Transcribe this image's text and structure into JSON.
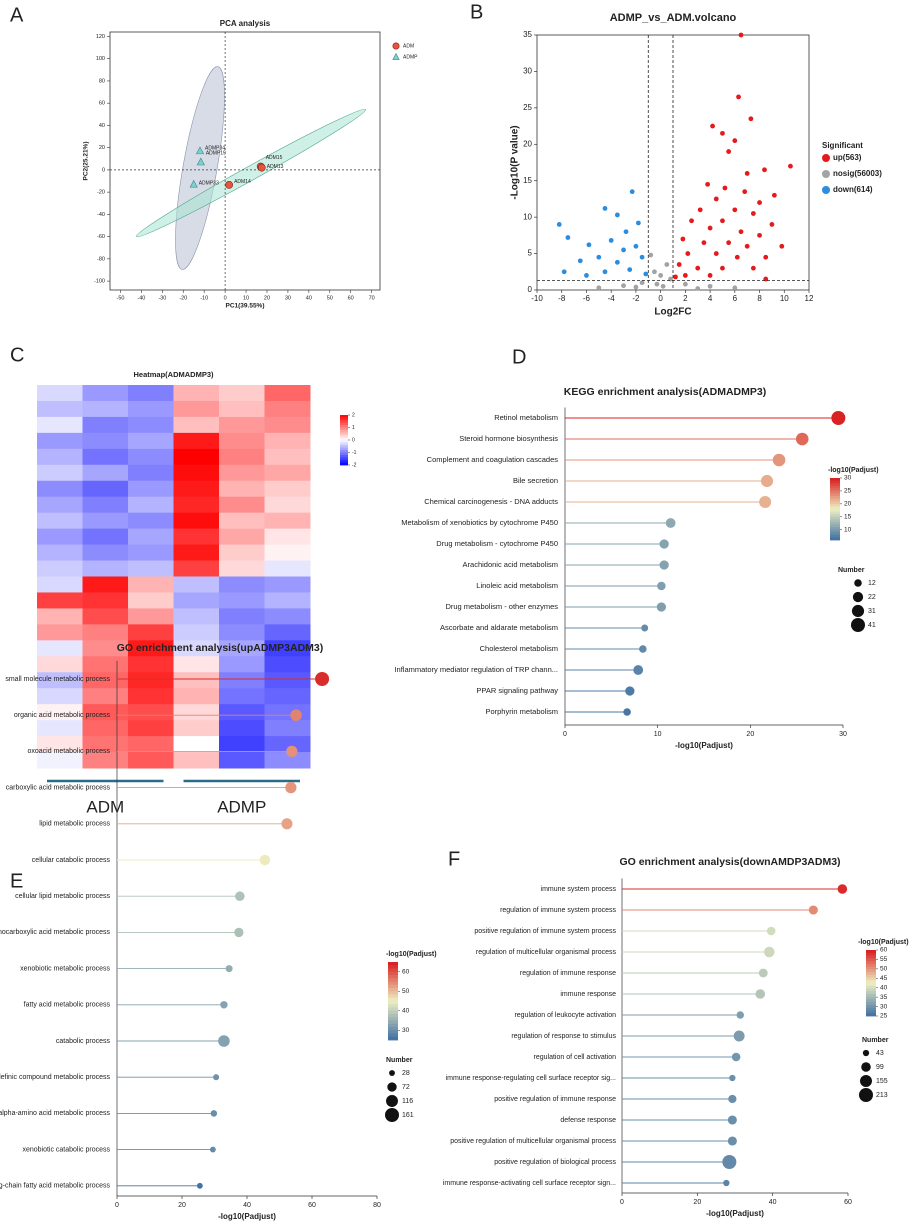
{
  "chart_data": [
    {
      "panel": "A",
      "type": "scatter",
      "title": "PCA analysis",
      "xlabel": "PC1(39.55%)",
      "ylabel": "PC2(25.21%)",
      "xlim": [
        -55,
        74
      ],
      "ylim": [
        -108,
        124
      ],
      "xticks": [
        -50,
        -40,
        -30,
        -20,
        -10,
        0,
        10,
        20,
        30,
        40,
        50,
        60,
        70
      ],
      "yticks": [
        -100,
        -80,
        -60,
        -40,
        -20,
        0,
        20,
        40,
        60,
        80,
        100,
        120
      ],
      "series": [
        {
          "name": "ADM",
          "color": "#e8533f",
          "marker": "circle",
          "x": [
            1.9,
            17,
            17.5
          ],
          "values": [
            -13.5,
            3,
            2
          ],
          "labels": [
            "ADM14",
            "ADM15",
            "ADM13"
          ]
        },
        {
          "name": "ADMP",
          "color": "#7fcfcf",
          "marker": "triangle",
          "x": [
            -12,
            -11.6,
            -15
          ],
          "values": [
            17,
            7,
            -13
          ],
          "labels": [
            "ADMP34",
            "ADMP19",
            "ADMP33"
          ]
        }
      ]
    },
    {
      "panel": "B",
      "type": "volcano",
      "title": "ADMP_vs_ADM.volcano",
      "xlabel": "Log2FC",
      "ylabel": "-Log10(P value)",
      "legend_title": "Significant",
      "xlim": [
        -10,
        12
      ],
      "ylim": [
        0,
        35
      ],
      "xticks": [
        -10,
        -8,
        -6,
        -4,
        -2,
        0,
        2,
        4,
        6,
        8,
        10,
        12
      ],
      "yticks": [
        0,
        5,
        10,
        15,
        20,
        25,
        30,
        35
      ],
      "thresholds": {
        "x": [
          -1,
          1
        ],
        "y": 1.3
      },
      "series": [
        {
          "name": "up(563)",
          "color": "#e41a1c",
          "x": [
            6.5,
            6.3,
            7.3,
            4.2,
            5,
            6,
            5.5,
            10.5,
            8.4,
            7,
            3.8,
            5.2,
            6.8,
            9.2,
            4.5,
            8,
            3.2,
            6,
            7.5,
            2.5,
            5,
            9,
            4,
            6.5,
            8,
            1.8,
            3.5,
            5.5,
            7,
            9.8,
            2.2,
            4.5,
            6.2,
            8.5,
            1.5,
            3,
            5,
            7.5,
            2,
            4,
            1.2,
            8.5
          ],
          "values": [
            35,
            26.5,
            23.5,
            22.5,
            21.5,
            20.5,
            19,
            17,
            16.5,
            16,
            14.5,
            14,
            13.5,
            13,
            12.5,
            12,
            11,
            11,
            10.5,
            9.5,
            9.5,
            9,
            8.5,
            8,
            7.5,
            7,
            6.5,
            6.5,
            6,
            6,
            5,
            5,
            4.5,
            4.5,
            3.5,
            3,
            3,
            3,
            2,
            2,
            1.8,
            1.5
          ]
        },
        {
          "name": "nosig(56003)",
          "color": "#a3a3a3",
          "x": [
            -0.8,
            0.5,
            -0.5,
            0,
            0.8,
            -1.5,
            -3,
            -5,
            2,
            4,
            6,
            0.2,
            -0.3,
            3,
            -2
          ],
          "values": [
            4.8,
            3.5,
            2.5,
            2,
            1.5,
            1,
            0.6,
            0.3,
            0.8,
            0.5,
            0.3,
            0.5,
            0.8,
            0.2,
            0.4
          ]
        },
        {
          "name": "down(614)",
          "color": "#2b8ce0",
          "x": [
            -2.3,
            -4.5,
            -8.2,
            -3.5,
            -7.5,
            -2.8,
            -1.8,
            -5.8,
            -4,
            -3,
            -2,
            -6.5,
            -5,
            -3.5,
            -1.5,
            -7.8,
            -4.5,
            -2.5,
            -1.2,
            -6
          ],
          "values": [
            13.5,
            11.2,
            9,
            10.3,
            7.2,
            8,
            9.2,
            6.2,
            6.8,
            5.5,
            6,
            4,
            4.5,
            3.8,
            4.5,
            2.5,
            2.5,
            2.8,
            2.2,
            2
          ]
        }
      ]
    },
    {
      "panel": "C",
      "type": "heatmap",
      "title": "Heatmap(ADMADMP3)",
      "groups": [
        "ADM",
        "ADMP"
      ],
      "colorlim": [
        -2,
        2
      ],
      "color_ticks": [
        2,
        1,
        0,
        -1,
        -2
      ],
      "rows": [
        [
          -0.3,
          -0.8,
          -1.0,
          0.6,
          0.4,
          1.2
        ],
        [
          -0.5,
          -0.6,
          -0.8,
          0.8,
          0.5,
          1.0
        ],
        [
          -0.2,
          -1.0,
          -0.9,
          0.5,
          0.8,
          0.9
        ],
        [
          -0.8,
          -0.9,
          -0.7,
          1.8,
          0.9,
          0.6
        ],
        [
          -0.6,
          -1.1,
          -0.9,
          2.0,
          1.0,
          0.5
        ],
        [
          -0.4,
          -0.7,
          -1.0,
          1.9,
          0.8,
          0.7
        ],
        [
          -0.9,
          -1.2,
          -0.8,
          1.8,
          0.6,
          0.4
        ],
        [
          -0.7,
          -1.0,
          -0.6,
          1.7,
          0.9,
          0.3
        ],
        [
          -0.5,
          -0.8,
          -0.9,
          1.9,
          0.5,
          0.6
        ],
        [
          -0.8,
          -1.1,
          -0.7,
          1.6,
          0.7,
          0.2
        ],
        [
          -0.6,
          -0.9,
          -0.8,
          1.8,
          0.4,
          0.1
        ],
        [
          -0.4,
          -0.6,
          -0.5,
          1.5,
          0.3,
          -0.2
        ],
        [
          -0.3,
          1.8,
          0.6,
          -0.5,
          -0.9,
          -0.8
        ],
        [
          1.5,
          1.6,
          0.4,
          -0.7,
          -0.8,
          -0.6
        ],
        [
          0.6,
          1.4,
          0.8,
          -0.5,
          -1.0,
          -0.9
        ],
        [
          0.8,
          1.0,
          1.5,
          -0.4,
          -0.9,
          -1.2
        ],
        [
          -0.2,
          0.9,
          1.8,
          -0.3,
          -0.7,
          -1.5
        ],
        [
          0.3,
          1.1,
          1.6,
          0.2,
          -0.8,
          -1.4
        ],
        [
          -0.5,
          1.2,
          1.7,
          0.5,
          -1.0,
          -1.3
        ],
        [
          -0.3,
          1.0,
          1.6,
          0.6,
          -1.1,
          -1.2
        ],
        [
          0.1,
          1.3,
          1.4,
          0.3,
          -1.3,
          -1.1
        ],
        [
          -0.2,
          1.2,
          1.5,
          0.4,
          -1.4,
          -1.0
        ],
        [
          0.2,
          1.1,
          1.2,
          0.0,
          -1.5,
          -1.2
        ],
        [
          -0.1,
          1.0,
          1.3,
          0.5,
          -1.3,
          -0.9
        ]
      ]
    },
    {
      "panel": "D",
      "type": "lollipop",
      "title": "KEGG enrichment analysis(ADMADMP3)",
      "xlabel": "-log10(Padjust)",
      "color_label": "-log10(Padjust)",
      "size_label": "Number",
      "xlim": [
        0,
        30
      ],
      "xticks": [
        0,
        10,
        20,
        30
      ],
      "colorlim": [
        6,
        30
      ],
      "color_ticks": [
        10,
        15,
        20,
        25,
        30
      ],
      "size_ticks": [
        12,
        22,
        31,
        41
      ],
      "categories": [
        "Retinol metabolism",
        "Steroid hormone biosynthesis",
        "Complement and coagulation cascades",
        "Bile secretion",
        "Chemical carcinogenesis - DNA adducts",
        "Metabolism of xenobiotics by cytochrome P450",
        "Drug metabolism - cytochrome P450",
        "Arachidonic acid metabolism",
        "Linoleic acid metabolism",
        "Drug metabolism - other enzymes",
        "Ascorbate and aldarate metabolism",
        "Cholesterol metabolism",
        "Inflammatory mediator regulation of TRP chann...",
        "PPAR signaling pathway",
        "Porphyrin metabolism"
      ],
      "values": [
        29.5,
        25.6,
        23.1,
        21.8,
        21.6,
        11.4,
        10.7,
        10.7,
        10.4,
        10.4,
        8.6,
        8.4,
        7.9,
        7.0,
        6.7
      ],
      "sizes": [
        41,
        33,
        33,
        31,
        30,
        20,
        18,
        18,
        15,
        18,
        10,
        12,
        20,
        18,
        12
      ]
    },
    {
      "panel": "E",
      "type": "lollipop",
      "title": "GO enrichment analysis(upADMP3ADM3)",
      "xlabel": "-log10(Padjust)",
      "color_label": "-log10(Padjust)",
      "size_label": "Number",
      "xlim": [
        0,
        80
      ],
      "xticks": [
        0,
        20,
        40,
        60,
        80
      ],
      "colorlim": [
        25,
        65
      ],
      "color_ticks": [
        30,
        40,
        50,
        60
      ],
      "size_ticks": [
        28,
        72,
        116,
        161
      ],
      "categories": [
        "small molecule metabolic process",
        "organic acid metabolic process",
        "oxoacid metabolic process",
        "carboxylic acid metabolic process",
        "lipid metabolic process",
        "cellular catabolic process",
        "cellular lipid metabolic process",
        "monocarboxylic acid metabolic process",
        "xenobiotic metabolic process",
        "fatty acid metabolic process",
        "catabolic process",
        "olefinic compound metabolic process",
        "alpha-amino acid metabolic process",
        "xenobiotic catabolic process",
        "long-chain fatty acid metabolic process"
      ],
      "values": [
        63.1,
        55.1,
        53.8,
        53.5,
        52.3,
        45.5,
        37.8,
        37.5,
        34.5,
        32.9,
        32.9,
        30.5,
        29.8,
        29.5,
        25.5
      ],
      "sizes": [
        161,
        110,
        105,
        104,
        100,
        90,
        75,
        72,
        40,
        45,
        110,
        30,
        35,
        28,
        28
      ]
    },
    {
      "panel": "F",
      "type": "lollipop",
      "title": "GO enrichment analysis(downAMDP3ADM3)",
      "xlabel": "-log10(Padjust)",
      "color_label": "-log10(Padjust)",
      "size_label": "Number",
      "xlim": [
        0,
        60
      ],
      "xticks": [
        0,
        20,
        40,
        60
      ],
      "colorlim": [
        25,
        60
      ],
      "color_ticks": [
        25,
        30,
        35,
        40,
        45,
        50,
        55,
        60
      ],
      "size_ticks": [
        43,
        99,
        155,
        213
      ],
      "categories": [
        "immune system process",
        "regulation of immune system process",
        "positive regulation of immune system process",
        "regulation of multicellular organismal process",
        "regulation of immune response",
        "immune response",
        "regulation of leukocyte activation",
        "regulation of response to stimulus",
        "regulation of cell activation",
        "immune response-regulating cell surface receptor sig...",
        "positive regulation of immune response",
        "defense response",
        "positive regulation of multicellular organismal process",
        "positive regulation of biological process",
        "immune response-activating cell surface receptor sign..."
      ],
      "values": [
        58.5,
        50.8,
        39.6,
        39.1,
        37.5,
        36.7,
        31.4,
        31.1,
        30.3,
        29.3,
        29.3,
        29.3,
        29.3,
        28.5,
        27.7
      ],
      "sizes": [
        100,
        90,
        80,
        120,
        85,
        100,
        60,
        130,
        80,
        43,
        75,
        90,
        90,
        213,
        43
      ]
    }
  ]
}
